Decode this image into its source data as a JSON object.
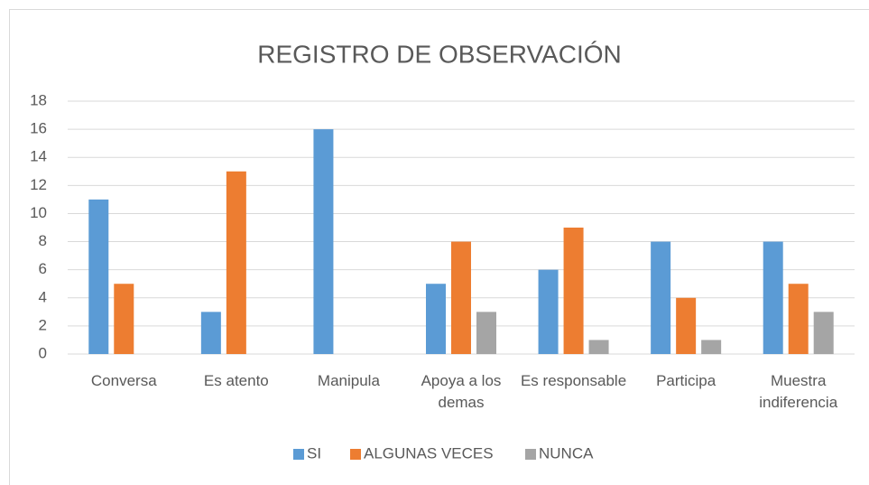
{
  "chart_data": {
    "type": "bar",
    "title": "REGISTRO DE OBSERVACIÓN",
    "categories": [
      "Conversa",
      "Es atento",
      "Manipula",
      "Apoya a los demas",
      "Es responsable",
      "Participa",
      "Muestra indiferencia"
    ],
    "series": [
      {
        "name": "SI",
        "color": "#5b9bd5",
        "values": [
          11,
          3,
          16,
          5,
          6,
          8,
          8
        ]
      },
      {
        "name": "ALGUNAS VECES",
        "color": "#ed7d31",
        "values": [
          5,
          13,
          0,
          8,
          9,
          4,
          5
        ]
      },
      {
        "name": "NUNCA",
        "color": "#a5a5a5",
        "values": [
          0,
          0,
          0,
          3,
          1,
          1,
          3
        ]
      }
    ],
    "ylim": [
      0,
      18
    ],
    "yticks": [
      0,
      2,
      4,
      6,
      8,
      10,
      12,
      14,
      16,
      18
    ],
    "grid": true,
    "legend": "bottom"
  }
}
